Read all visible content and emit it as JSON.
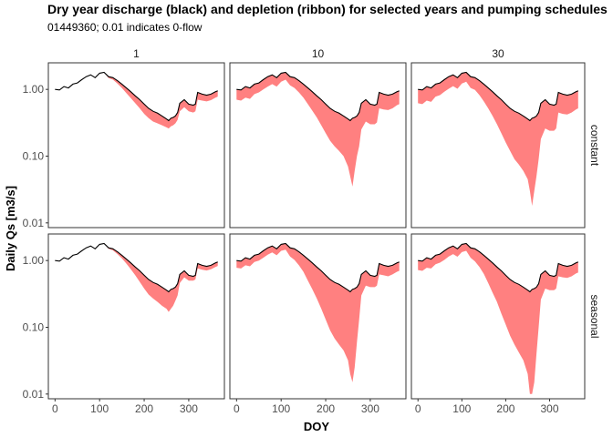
{
  "chart_data": {
    "type": "area",
    "title": "Dry year discharge (black) and depletion (ribbon) for selected years and pumping schedules",
    "subtitle": "01449360; 0.01 indicates 0-flow",
    "xlabel": "DOY",
    "ylabel": "Daily Qs [m3/s]",
    "y_scale": "log10",
    "ylim": [
      0.0085,
      2.5
    ],
    "xlim": [
      -15,
      380
    ],
    "x_ticks": [
      0,
      100,
      200,
      300
    ],
    "x_tick_labels": [
      "0",
      "100",
      "200",
      "300"
    ],
    "y_ticks": [
      0.01,
      0.1,
      1.0
    ],
    "y_tick_labels": [
      "0.01",
      "0.10",
      "1.00"
    ],
    "column_strips": [
      "1",
      "10",
      "30"
    ],
    "row_strips": [
      "constant",
      "seasonal"
    ],
    "colors": {
      "discharge_line": "#000000",
      "depletion_ribbon": "#ff8080",
      "strip_fill": "#ffffff",
      "panel_border": "#333333"
    },
    "discharge": {
      "doy": [
        0,
        10,
        20,
        30,
        40,
        50,
        60,
        70,
        80,
        90,
        100,
        110,
        120,
        130,
        140,
        150,
        160,
        170,
        180,
        190,
        200,
        210,
        220,
        230,
        240,
        250,
        255,
        260,
        265,
        270,
        275,
        280,
        290,
        300,
        310,
        315,
        320,
        330,
        340,
        350,
        360,
        365
      ],
      "q": [
        1.0,
        0.98,
        1.1,
        1.05,
        1.2,
        1.25,
        1.4,
        1.55,
        1.65,
        1.5,
        1.75,
        1.8,
        1.55,
        1.5,
        1.35,
        1.2,
        1.05,
        0.92,
        0.8,
        0.7,
        0.6,
        0.52,
        0.47,
        0.44,
        0.4,
        0.36,
        0.34,
        0.37,
        0.38,
        0.4,
        0.45,
        0.62,
        0.7,
        0.6,
        0.58,
        0.6,
        0.9,
        0.85,
        0.82,
        0.85,
        0.92,
        0.95
      ]
    },
    "panels": [
      {
        "column": "1",
        "row": "constant",
        "ribbon_start_doy": 110,
        "lower_q": [
          null,
          null,
          null,
          null,
          null,
          null,
          null,
          null,
          null,
          null,
          null,
          1.8,
          1.48,
          1.4,
          1.22,
          1.05,
          0.88,
          0.74,
          0.62,
          0.52,
          0.43,
          0.37,
          0.33,
          0.31,
          0.29,
          0.27,
          0.26,
          0.28,
          0.29,
          0.31,
          0.35,
          0.47,
          0.54,
          0.47,
          0.45,
          0.47,
          0.7,
          0.68,
          0.66,
          0.69,
          0.75,
          0.78
        ]
      },
      {
        "column": "10",
        "row": "constant",
        "ribbon_start_doy": 0,
        "lower_q": [
          0.7,
          0.68,
          0.75,
          0.72,
          0.85,
          0.9,
          1.0,
          1.1,
          1.2,
          1.1,
          1.3,
          1.4,
          1.15,
          1.05,
          0.9,
          0.75,
          0.6,
          0.48,
          0.38,
          0.29,
          0.22,
          0.17,
          0.14,
          0.12,
          0.1,
          0.07,
          0.05,
          0.035,
          0.06,
          0.1,
          0.14,
          0.25,
          0.33,
          0.3,
          0.3,
          0.32,
          0.52,
          0.5,
          0.49,
          0.52,
          0.58,
          0.6
        ]
      },
      {
        "column": "30",
        "row": "constant",
        "ribbon_start_doy": 0,
        "lower_q": [
          0.62,
          0.6,
          0.68,
          0.65,
          0.78,
          0.82,
          0.92,
          1.02,
          1.12,
          1.02,
          1.22,
          1.3,
          1.05,
          0.98,
          0.82,
          0.66,
          0.52,
          0.4,
          0.3,
          0.22,
          0.16,
          0.12,
          0.09,
          0.075,
          0.06,
          0.045,
          0.03,
          0.018,
          0.03,
          0.05,
          0.09,
          0.18,
          0.26,
          0.24,
          0.24,
          0.26,
          0.45,
          0.43,
          0.42,
          0.45,
          0.5,
          0.52
        ]
      },
      {
        "column": "1",
        "row": "seasonal",
        "ribbon_start_doy": 110,
        "lower_q": [
          null,
          null,
          null,
          null,
          null,
          null,
          null,
          null,
          null,
          null,
          null,
          1.8,
          1.5,
          1.42,
          1.25,
          1.08,
          0.9,
          0.74,
          0.6,
          0.48,
          0.38,
          0.31,
          0.27,
          0.24,
          0.21,
          0.19,
          0.17,
          0.19,
          0.21,
          0.25,
          0.3,
          0.46,
          0.56,
          0.5,
          0.5,
          0.52,
          0.76,
          0.73,
          0.71,
          0.74,
          0.8,
          0.83
        ]
      },
      {
        "column": "10",
        "row": "seasonal",
        "ribbon_start_doy": 0,
        "lower_q": [
          0.78,
          0.76,
          0.85,
          0.82,
          0.95,
          1.0,
          1.1,
          1.22,
          1.32,
          1.2,
          1.4,
          1.45,
          1.15,
          1.02,
          0.85,
          0.68,
          0.5,
          0.37,
          0.27,
          0.19,
          0.13,
          0.09,
          0.068,
          0.055,
          0.045,
          0.032,
          0.02,
          0.015,
          0.025,
          0.06,
          0.13,
          0.3,
          0.42,
          0.4,
          0.4,
          0.42,
          0.62,
          0.6,
          0.58,
          0.62,
          0.68,
          0.7
        ]
      },
      {
        "column": "30",
        "row": "seasonal",
        "ribbon_start_doy": 0,
        "lower_q": [
          0.72,
          0.7,
          0.78,
          0.76,
          0.88,
          0.93,
          1.02,
          1.15,
          1.25,
          1.14,
          1.34,
          1.4,
          1.1,
          0.97,
          0.8,
          0.63,
          0.46,
          0.33,
          0.24,
          0.16,
          0.11,
          0.075,
          0.055,
          0.042,
          0.032,
          0.02,
          0.01,
          0.01,
          0.015,
          0.04,
          0.1,
          0.26,
          0.38,
          0.36,
          0.36,
          0.38,
          0.58,
          0.56,
          0.55,
          0.58,
          0.64,
          0.66
        ]
      }
    ]
  }
}
